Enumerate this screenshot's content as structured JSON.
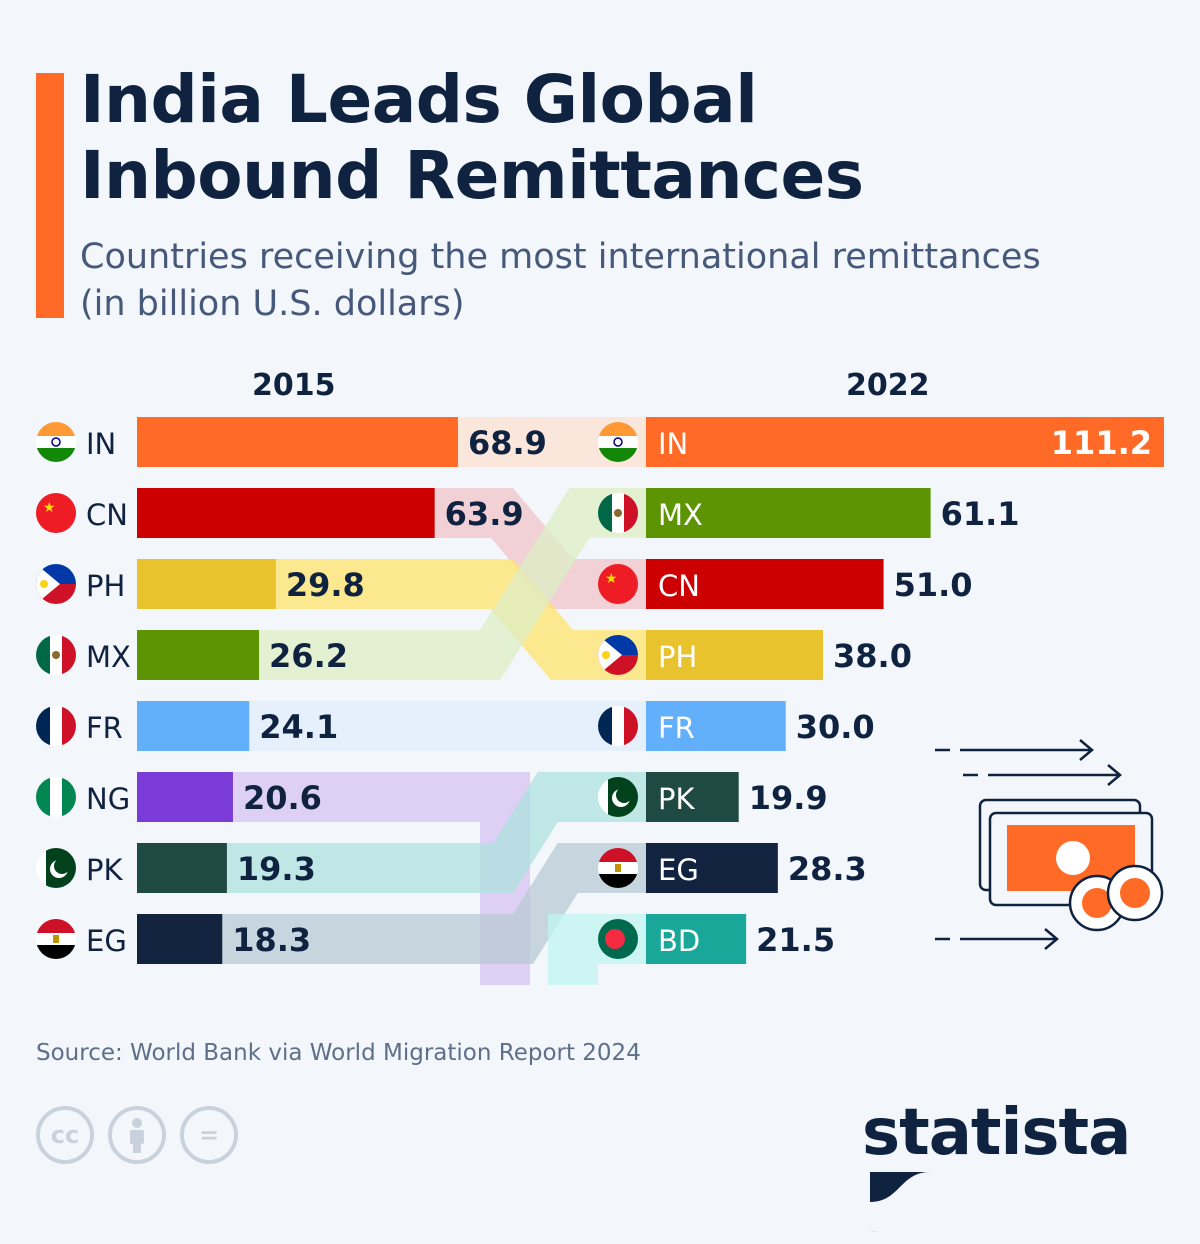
{
  "title_line1": "India Leads Global",
  "title_line2": "Inbound Remittances",
  "subtitle_line1": "Countries receiving the most international remittances",
  "subtitle_line2": "(in billion U.S. dollars)",
  "source": "Source: World Bank via World Migration Report 2024",
  "logo": "statista",
  "license_icons": [
    "cc-icon",
    "attribution-icon",
    "no-derivatives-icon"
  ],
  "chart_data": {
    "type": "bar",
    "subtype": "bump/ranking comparison",
    "years": [
      "2015",
      "2022"
    ],
    "unit": "billion U.S. dollars",
    "series": [
      {
        "name": "2015",
        "categories": [
          "IN",
          "CN",
          "PH",
          "MX",
          "FR",
          "NG",
          "PK",
          "EG"
        ],
        "values": [
          68.9,
          63.9,
          29.8,
          26.2,
          24.1,
          20.6,
          19.3,
          18.3
        ],
        "labels": [
          "68.9",
          "63.9",
          "29.8",
          "26.2",
          "24.1",
          "20.6",
          "19.3",
          "18.3"
        ]
      },
      {
        "name": "2022",
        "categories": [
          "IN",
          "MX",
          "CN",
          "PH",
          "FR",
          "PK",
          "EG",
          "BD"
        ],
        "values": [
          111.2,
          61.1,
          51.0,
          38.0,
          30.0,
          19.9,
          28.3,
          21.5
        ],
        "labels": [
          "111.2",
          "61.1",
          "51.0",
          "38.0",
          "30.0",
          "19.9",
          "28.3",
          "21.5"
        ]
      }
    ],
    "colors": {
      "IN": {
        "bar": "#ff6b26",
        "band": "#fde0d0"
      },
      "CN": {
        "bar": "#cc0000",
        "band": "#f0c4c9"
      },
      "PH": {
        "bar": "#e9c32e",
        "band": "#ffe36a"
      },
      "MX": {
        "bar": "#5c9403",
        "band": "#ddedc4"
      },
      "FR": {
        "bar": "#62b0fb",
        "band": "#e2eefc"
      },
      "NG": {
        "bar": "#7b3bd8",
        "band": "#d7c3f1"
      },
      "PK": {
        "bar": "#1f4a43",
        "band": "#aee2df"
      },
      "EG": {
        "bar": "#12233f",
        "band": "#b8c9d4"
      },
      "BD": {
        "bar": "#19a79a",
        "band": "#bff4f1"
      }
    },
    "xlim": [
      0,
      111.2
    ]
  }
}
